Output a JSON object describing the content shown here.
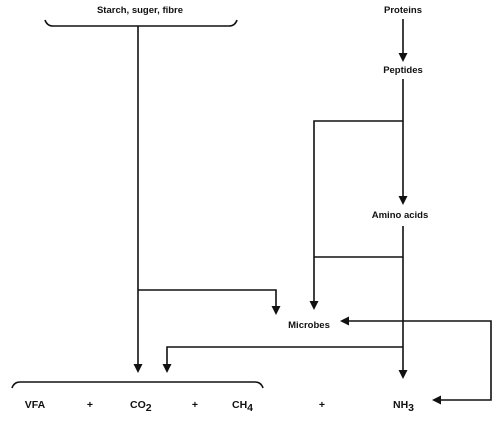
{
  "nodes": {
    "carbohydrates": "Starch, suger, fibre",
    "proteins": "Proteins",
    "peptides": "Peptides",
    "amino_acids": "Amino acids",
    "microbes": "Microbes"
  },
  "products": {
    "vfa": "VFA",
    "plus1": "+",
    "co2_main": "CO",
    "co2_sub": "2",
    "plus2": "+",
    "ch4_main": "CH",
    "ch4_sub": "4",
    "plus3": "+",
    "nh3_main": "NH",
    "nh3_sub": "3"
  },
  "colors": {
    "line": "#111111",
    "background": "#ffffff"
  }
}
